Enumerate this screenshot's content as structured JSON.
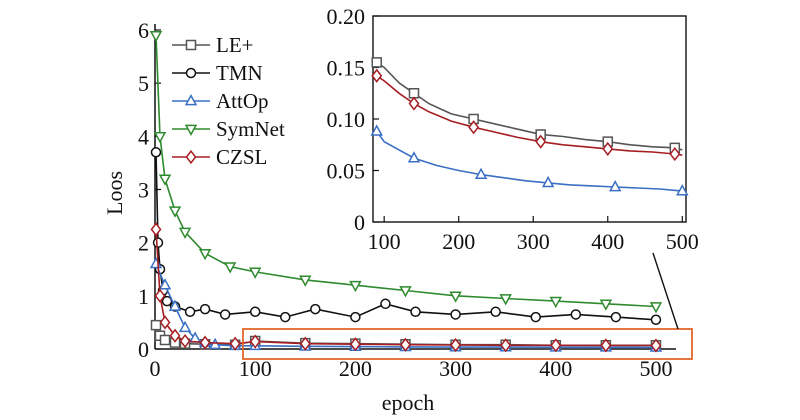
{
  "chart_data": [
    {
      "type": "line",
      "panel": "main",
      "title": "",
      "xlabel": "epoch",
      "ylabel": "Loos",
      "xlim": [
        0,
        520
      ],
      "ylim": [
        0,
        6
      ],
      "xticks": [
        0,
        100,
        200,
        300,
        400,
        500
      ],
      "yticks": [
        0,
        1,
        2,
        3,
        4,
        5,
        6
      ],
      "legend": "top-left",
      "grid": false,
      "series": [
        {
          "name": "LE+",
          "color": "#555555",
          "marker": "square",
          "x": [
            1,
            5,
            10,
            20,
            30,
            50,
            80,
            100,
            150,
            200,
            250,
            300,
            350,
            400,
            450,
            500
          ],
          "y": [
            0.45,
            0.25,
            0.17,
            0.12,
            0.1,
            0.09,
            0.08,
            0.15,
            0.11,
            0.1,
            0.09,
            0.08,
            0.08,
            0.07,
            0.07,
            0.07
          ]
        },
        {
          "name": "TMN",
          "color": "#111111",
          "marker": "circle",
          "x": [
            1,
            3,
            5,
            8,
            12,
            20,
            35,
            50,
            70,
            100,
            130,
            160,
            200,
            230,
            260,
            300,
            340,
            380,
            420,
            460,
            500
          ],
          "y": [
            3.7,
            2.0,
            1.5,
            1.1,
            0.9,
            0.8,
            0.7,
            0.75,
            0.65,
            0.7,
            0.6,
            0.75,
            0.6,
            0.85,
            0.7,
            0.65,
            0.7,
            0.6,
            0.65,
            0.6,
            0.55
          ]
        },
        {
          "name": "AttOp",
          "color": "#3a6fc4",
          "marker": "triangle-up",
          "x": [
            1,
            10,
            20,
            30,
            40,
            50,
            60,
            80,
            100,
            150,
            200,
            250,
            300,
            350,
            400,
            450,
            500
          ],
          "y": [
            1.6,
            1.2,
            0.8,
            0.4,
            0.2,
            0.12,
            0.08,
            0.06,
            0.06,
            0.05,
            0.045,
            0.04,
            0.035,
            0.035,
            0.033,
            0.032,
            0.03
          ]
        },
        {
          "name": "SymNet",
          "color": "#2f8a2f",
          "marker": "triangle-down",
          "x": [
            1,
            5,
            10,
            20,
            30,
            50,
            75,
            100,
            150,
            200,
            250,
            300,
            350,
            400,
            450,
            500
          ],
          "y": [
            5.9,
            4.0,
            3.2,
            2.6,
            2.2,
            1.8,
            1.55,
            1.45,
            1.3,
            1.2,
            1.1,
            1.0,
            0.95,
            0.9,
            0.85,
            0.8
          ]
        },
        {
          "name": "CZSL",
          "color": "#a61e22",
          "marker": "diamond",
          "x": [
            1,
            5,
            10,
            20,
            30,
            50,
            80,
            100,
            150,
            200,
            250,
            300,
            350,
            400,
            450,
            500
          ],
          "y": [
            2.25,
            1.0,
            0.5,
            0.25,
            0.15,
            0.12,
            0.1,
            0.14,
            0.1,
            0.09,
            0.08,
            0.075,
            0.07,
            0.07,
            0.068,
            0.065
          ]
        }
      ]
    },
    {
      "type": "line",
      "panel": "inset",
      "title": "",
      "xlabel": "",
      "ylabel": "",
      "xlim": [
        85,
        505
      ],
      "ylim": [
        0,
        0.2
      ],
      "xticks": [
        100,
        200,
        300,
        400,
        500
      ],
      "yticks": [
        0,
        0.05,
        0.1,
        0.15,
        0.2
      ],
      "xticklabels": [
        "100",
        "200",
        "300",
        "400",
        "500"
      ],
      "yticklabels": [
        "0",
        "0.05",
        "0.10",
        "0.15",
        "0.20"
      ],
      "grid": false,
      "series": [
        {
          "name": "LE+",
          "color": "#555555",
          "marker": "square",
          "x": [
            90,
            100,
            120,
            140,
            160,
            190,
            220,
            250,
            280,
            310,
            340,
            370,
            400,
            430,
            460,
            490,
            500
          ],
          "y": [
            0.155,
            0.15,
            0.135,
            0.125,
            0.115,
            0.105,
            0.1,
            0.095,
            0.09,
            0.085,
            0.083,
            0.08,
            0.078,
            0.075,
            0.073,
            0.072,
            0.07
          ]
        },
        {
          "name": "AttOp",
          "color": "#3a6fc4",
          "marker": "triangle-up",
          "x": [
            90,
            100,
            120,
            140,
            170,
            200,
            230,
            260,
            290,
            320,
            350,
            380,
            410,
            440,
            470,
            500
          ],
          "y": [
            0.088,
            0.078,
            0.07,
            0.062,
            0.055,
            0.05,
            0.046,
            0.043,
            0.04,
            0.038,
            0.036,
            0.035,
            0.034,
            0.033,
            0.032,
            0.03
          ]
        },
        {
          "name": "CZSL",
          "color": "#a61e22",
          "marker": "diamond",
          "x": [
            90,
            100,
            120,
            140,
            160,
            190,
            220,
            250,
            280,
            310,
            340,
            370,
            400,
            430,
            460,
            490,
            500
          ],
          "y": [
            0.142,
            0.137,
            0.125,
            0.115,
            0.107,
            0.098,
            0.092,
            0.087,
            0.082,
            0.078,
            0.075,
            0.073,
            0.071,
            0.069,
            0.068,
            0.066,
            0.065
          ]
        }
      ]
    }
  ],
  "colors": {
    "highlight_box": "#e2672a",
    "axis": "#111111"
  }
}
